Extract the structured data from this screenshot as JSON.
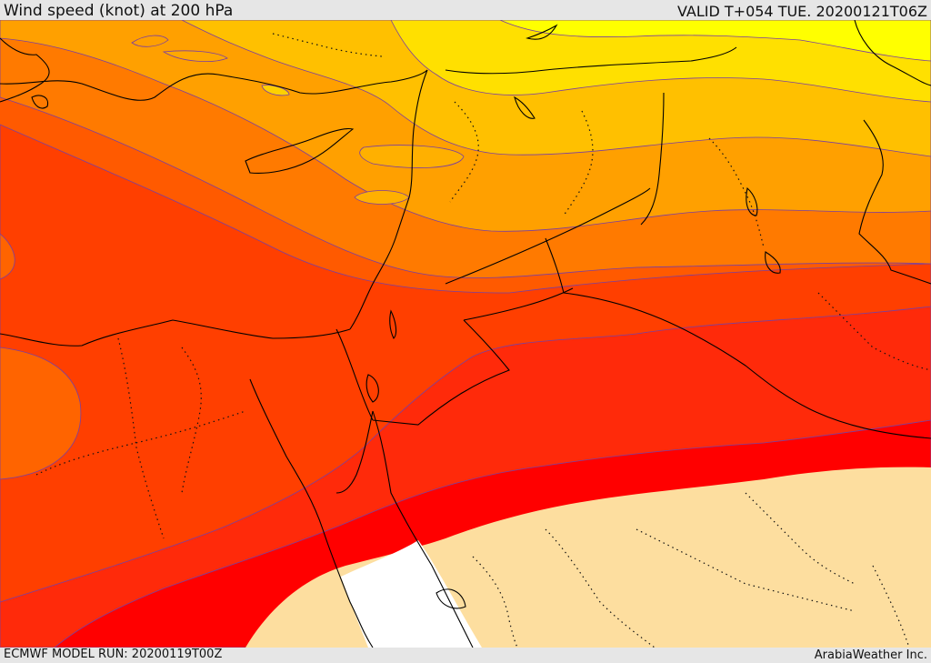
{
  "header": {
    "title": "Wind speed (knot) at 200 hPa",
    "valid": "VALID T+054 TUE. 20200121T06Z"
  },
  "footer": {
    "model_run": "ECMWF MODEL RUN: 20200119T00Z",
    "credit": "ArabiaWeather Inc."
  },
  "map": {
    "variable": "wind-speed",
    "level_hpa": 200,
    "units": "knot",
    "color_ramp": [
      "#fdde9f",
      "#ffffff",
      "#ff0000",
      "#ff2a0a",
      "#ff3f00",
      "#ff5a00",
      "#ff7a00",
      "#ffa000",
      "#ffc000",
      "#ffe000",
      "#ffff00"
    ],
    "pattern": "jet stream core (red) running southwest to northeast across Egypt, Sinai and northern Saudi Arabia; weakest winds (yellow) over Turkey and the Caucasus; calm (beige/white) over the southern Red Sea and Arabia"
  }
}
